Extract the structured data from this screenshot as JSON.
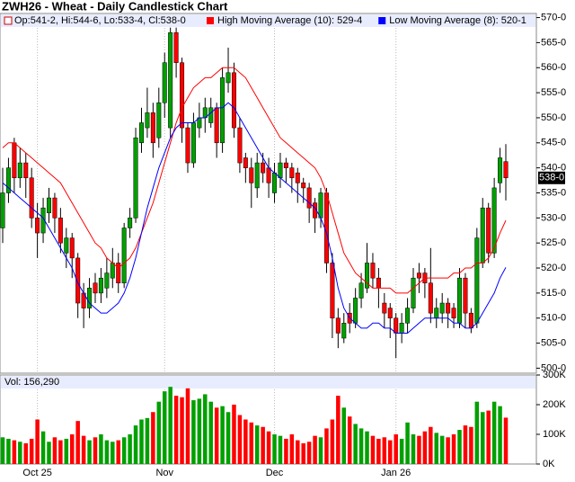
{
  "chart_data": [
    {
      "type": "candlestick",
      "title": "ZWH26 - Wheat - Daily Candlestick Chart",
      "ohlc_name": "Op:541-2, Hi:544-6, Lo:533-4, Cl:538-0",
      "up_color": "#00a000",
      "down_color": "#ff0000",
      "open": [
        528,
        535,
        545,
        538,
        541,
        538,
        530,
        527,
        531,
        534,
        530,
        523,
        526,
        522,
        515,
        512,
        517,
        515,
        516,
        518,
        521,
        517,
        528,
        530,
        545,
        548,
        551,
        546,
        553,
        548,
        567,
        561,
        548,
        541,
        548,
        550,
        549,
        552,
        545,
        557,
        559,
        548,
        542,
        540,
        536,
        541,
        540,
        535,
        538,
        541,
        540,
        539,
        537,
        536,
        533,
        530,
        535,
        521,
        510,
        506,
        511,
        509,
        514,
        516,
        521,
        518,
        513,
        512,
        510,
        507,
        509,
        512,
        519,
        519,
        517,
        510,
        511,
        513,
        512,
        509,
        518,
        511,
        509,
        521,
        532,
        523,
        537,
        541.25
      ],
      "high": [
        540,
        542,
        546,
        544,
        543,
        540,
        533,
        534,
        536,
        535,
        532,
        528,
        527,
        523,
        517,
        518,
        519,
        520,
        522,
        524,
        523,
        529,
        532,
        548,
        552,
        556,
        553,
        556,
        563,
        568,
        568,
        562,
        549,
        551,
        553,
        554,
        554,
        553,
        560,
        564,
        561,
        550,
        543,
        542,
        543,
        543,
        542,
        541,
        543,
        542,
        541,
        540,
        538,
        537,
        534,
        536,
        536,
        523,
        512,
        511,
        513,
        516,
        519,
        525,
        523,
        520,
        515,
        513,
        511,
        511,
        514,
        520,
        521,
        520,
        524,
        514,
        515,
        514,
        513,
        520,
        519,
        512,
        528,
        534,
        533,
        538,
        544,
        544.75
      ],
      "low": [
        525,
        533,
        535,
        536,
        534,
        528,
        522,
        525,
        529,
        527,
        523,
        520,
        518,
        510,
        508,
        510,
        513,
        513,
        514,
        516,
        515,
        516,
        526,
        529,
        543,
        546,
        542,
        544,
        550,
        546,
        558,
        545,
        539,
        540,
        546,
        547,
        548,
        542,
        543,
        555,
        546,
        539,
        537,
        532,
        534,
        537,
        534,
        533,
        536,
        537,
        535,
        533,
        533,
        529,
        527,
        528,
        519,
        506,
        504,
        505,
        507,
        508,
        512,
        515,
        516,
        512,
        508,
        506,
        502,
        505,
        507,
        511,
        515,
        514,
        509,
        508,
        509,
        508,
        508,
        508,
        508,
        507,
        508,
        520,
        521,
        522,
        535,
        533.5
      ],
      "close": [
        535,
        540,
        538,
        541,
        538,
        530,
        527,
        532,
        534,
        530,
        525,
        526,
        522,
        513,
        512,
        516,
        515,
        518,
        519,
        521,
        517,
        528,
        530,
        546,
        549,
        551,
        545,
        553,
        561,
        567,
        561,
        548,
        541,
        549,
        550,
        552,
        552,
        545,
        558,
        559,
        548,
        541,
        540,
        537,
        541,
        539,
        537,
        539,
        541,
        540,
        538,
        537,
        536,
        532,
        530,
        535,
        521,
        510,
        507,
        509,
        509,
        514,
        517,
        521,
        518,
        516,
        511,
        510,
        507,
        509,
        512,
        518,
        518,
        517,
        511,
        512,
        513,
        511,
        510,
        518,
        511,
        508,
        526,
        532,
        523,
        536,
        542,
        538
      ],
      "last_label": "538-0",
      "series": [
        {
          "name": "High Moving Average (10): 529-4",
          "color": "#ff0000",
          "values": [
            544,
            545,
            545,
            544,
            543,
            542,
            541,
            540,
            539,
            538,
            537,
            535,
            533,
            531,
            529,
            527,
            525,
            524,
            522,
            521,
            520,
            521,
            522,
            524,
            527,
            530,
            533,
            537,
            541,
            545,
            549,
            552,
            554,
            556,
            557,
            558,
            558,
            559,
            560,
            560,
            560,
            559,
            558,
            556,
            554,
            552,
            550,
            548,
            546,
            545,
            544,
            543,
            542,
            541,
            540,
            538,
            535,
            531,
            527,
            523,
            521,
            519,
            518,
            517,
            516,
            516,
            516,
            516,
            515,
            515,
            515,
            516,
            517,
            518,
            518,
            518,
            518,
            518,
            519,
            519,
            520,
            520,
            521,
            521,
            522,
            524,
            527,
            529.5
          ]
        },
        {
          "name": "Low Moving Average (8): 520-1",
          "color": "#0000ff",
          "values": [
            537,
            536,
            535,
            534,
            533,
            532,
            531,
            530,
            528,
            526,
            524,
            522,
            520,
            517,
            515,
            513,
            512,
            511,
            511,
            512,
            513,
            515,
            518,
            522,
            527,
            532,
            536,
            540,
            543,
            546,
            548,
            549,
            549,
            549,
            550,
            550,
            551,
            552,
            552,
            553,
            552,
            550,
            548,
            546,
            544,
            542,
            540,
            539,
            538,
            537,
            536,
            535,
            534,
            533,
            532,
            530,
            527,
            522,
            516,
            512,
            510,
            509,
            508,
            508,
            509,
            509,
            508,
            508,
            507,
            507,
            507,
            508,
            509,
            510,
            510,
            510,
            510,
            510,
            509,
            509,
            508,
            508,
            509,
            511,
            513,
            515,
            518,
            520.125
          ]
        }
      ],
      "ylim": [
        499,
        571
      ],
      "yticks": [
        {
          "value": 500,
          "label": "500-0"
        },
        {
          "value": 505,
          "label": "505-0"
        },
        {
          "value": 510,
          "label": "510-0"
        },
        {
          "value": 515,
          "label": "515-0"
        },
        {
          "value": 520,
          "label": "520-0"
        },
        {
          "value": 525,
          "label": "525-0"
        },
        {
          "value": 530,
          "label": "530-0"
        },
        {
          "value": 535,
          "label": "535-0"
        },
        {
          "value": 540,
          "label": "540-0"
        },
        {
          "value": 545,
          "label": "545-0"
        },
        {
          "value": 550,
          "label": "550-0"
        },
        {
          "value": 555,
          "label": "555-0"
        },
        {
          "value": 560,
          "label": "560-0"
        },
        {
          "value": 565,
          "label": "565-0"
        },
        {
          "value": 570,
          "label": "570-0"
        }
      ]
    },
    {
      "type": "bar",
      "name": "Vol: 156,290",
      "color": "#ff0000",
      "categories": [
        null,
        null,
        null,
        null,
        null,
        null,
        "Oct 25",
        null,
        null,
        null,
        null,
        null,
        null,
        null,
        null,
        null,
        null,
        null,
        null,
        null,
        null,
        null,
        null,
        null,
        null,
        null,
        null,
        null,
        "Nov",
        null,
        null,
        null,
        null,
        null,
        null,
        null,
        null,
        null,
        null,
        null,
        null,
        null,
        null,
        null,
        null,
        null,
        null,
        "Dec",
        null,
        null,
        null,
        null,
        null,
        null,
        null,
        null,
        null,
        null,
        null,
        null,
        null,
        null,
        null,
        null,
        null,
        null,
        null,
        null,
        "Jan 26",
        null,
        null,
        null,
        null,
        null,
        null,
        null,
        null,
        null,
        null,
        null,
        null,
        null,
        null,
        null,
        null,
        null,
        null,
        null
      ],
      "values": [
        90000,
        85000,
        80000,
        75000,
        70000,
        85000,
        150000,
        110000,
        75000,
        90000,
        80000,
        85000,
        100000,
        145000,
        95000,
        80000,
        90000,
        100000,
        80000,
        75000,
        80000,
        90000,
        100000,
        130000,
        150000,
        155000,
        175000,
        210000,
        245000,
        260000,
        230000,
        225000,
        255000,
        215000,
        220000,
        235000,
        210000,
        190000,
        195000,
        175000,
        200000,
        165000,
        150000,
        140000,
        130000,
        125000,
        110000,
        100000,
        95000,
        85000,
        100000,
        80000,
        70000,
        75000,
        95000,
        90000,
        120000,
        150000,
        230000,
        190000,
        160000,
        135000,
        120000,
        110000,
        95000,
        85000,
        90000,
        80000,
        100000,
        85000,
        140000,
        100000,
        95000,
        110000,
        125000,
        105000,
        95000,
        90000,
        100000,
        115000,
        130000,
        125000,
        210000,
        175000,
        180000,
        210000,
        195000,
        156290
      ],
      "ylim": [
        0,
        300000
      ],
      "yticks": [
        {
          "value": 0,
          "label": "0K"
        },
        {
          "value": 100000,
          "label": "100K"
        },
        {
          "value": 200000,
          "label": "200K"
        },
        {
          "value": 300000,
          "label": "300K"
        }
      ],
      "grid": true
    }
  ]
}
